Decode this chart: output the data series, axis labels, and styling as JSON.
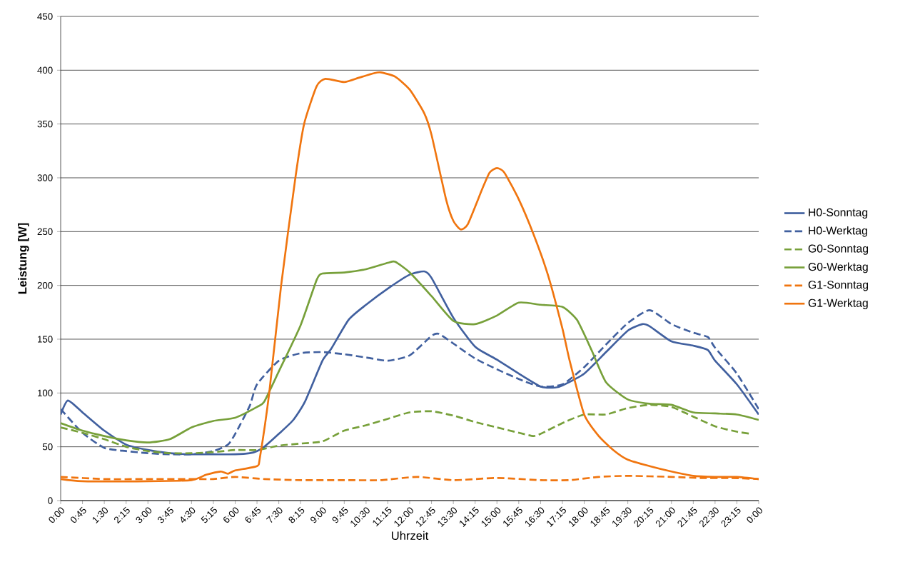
{
  "chart_data": {
    "type": "line",
    "xlabel": "Uhrzeit",
    "ylabel": "Leistung [W]",
    "xlim": [
      0,
      24
    ],
    "ylim": [
      0,
      450
    ],
    "xticks": [
      {
        "value": 0,
        "label": "0:00"
      },
      {
        "value": 0.75,
        "label": "0:45"
      },
      {
        "value": 1.5,
        "label": "1:30"
      },
      {
        "value": 2.25,
        "label": "2:15"
      },
      {
        "value": 3,
        "label": "3:00"
      },
      {
        "value": 3.75,
        "label": "3:45"
      },
      {
        "value": 4.5,
        "label": "4:30"
      },
      {
        "value": 5.25,
        "label": "5:15"
      },
      {
        "value": 6,
        "label": "6:00"
      },
      {
        "value": 6.75,
        "label": "6:45"
      },
      {
        "value": 7.5,
        "label": "7:30"
      },
      {
        "value": 8.25,
        "label": "8:15"
      },
      {
        "value": 9,
        "label": "9:00"
      },
      {
        "value": 9.75,
        "label": "9:45"
      },
      {
        "value": 10.5,
        "label": "10:30"
      },
      {
        "value": 11.25,
        "label": "11:15"
      },
      {
        "value": 12,
        "label": "12:00"
      },
      {
        "value": 12.75,
        "label": "12:45"
      },
      {
        "value": 13.5,
        "label": "13:30"
      },
      {
        "value": 14.25,
        "label": "14:15"
      },
      {
        "value": 15,
        "label": "15:00"
      },
      {
        "value": 15.75,
        "label": "15:45"
      },
      {
        "value": 16.5,
        "label": "16:30"
      },
      {
        "value": 17.25,
        "label": "17:15"
      },
      {
        "value": 18,
        "label": "18:00"
      },
      {
        "value": 18.75,
        "label": "18:45"
      },
      {
        "value": 19.5,
        "label": "19:30"
      },
      {
        "value": 20.25,
        "label": "20:15"
      },
      {
        "value": 21,
        "label": "21:00"
      },
      {
        "value": 21.75,
        "label": "21:45"
      },
      {
        "value": 22.5,
        "label": "22:30"
      },
      {
        "value": 23.25,
        "label": "23:15"
      },
      {
        "value": 24,
        "label": "0:00"
      }
    ],
    "yticks": [
      0,
      50,
      100,
      150,
      200,
      250,
      300,
      350,
      400,
      450
    ],
    "grid": "y",
    "legend": "right",
    "marker": "none",
    "series": [
      {
        "name": "H0-Sonntag",
        "color": "#41609f",
        "line_style": "solid",
        "x": [
          0,
          0.25,
          0.75,
          1.5,
          2.25,
          3,
          3.75,
          4.5,
          5.25,
          6,
          6.5,
          6.75,
          7,
          7.5,
          8,
          8.4,
          9,
          9.3,
          9.9,
          10.5,
          11.3,
          12,
          12.5,
          12.75,
          13.5,
          14.25,
          15,
          15.75,
          16.5,
          17,
          17.25,
          18,
          18.75,
          19.5,
          20,
          20.25,
          21,
          21.75,
          22.25,
          22.5,
          23.25,
          24
        ],
        "values": [
          80,
          93,
          82,
          65,
          52,
          47,
          44,
          43,
          43,
          43,
          44,
          46,
          50,
          62,
          75,
          92,
          130,
          141,
          168,
          182,
          198,
          210,
          213,
          207,
          170,
          143,
          131,
          118,
          106,
          105,
          107,
          118,
          138,
          158,
          164,
          162,
          148,
          144,
          140,
          130,
          108,
          80
        ]
      },
      {
        "name": "H0-Werktag",
        "color": "#41609f",
        "line_style": "dashed",
        "x": [
          0,
          0.75,
          1.5,
          2.25,
          3,
          3.75,
          4.5,
          5.25,
          5.75,
          6,
          6.5,
          6.75,
          7.5,
          8.25,
          9,
          9.75,
          10.5,
          11.25,
          12,
          12.75,
          13,
          13.5,
          14.25,
          15,
          15.75,
          16.5,
          17.25,
          18,
          18.75,
          19.5,
          20.25,
          21,
          21.75,
          22.25,
          22.5,
          23.25,
          24
        ],
        "values": [
          85,
          63,
          49,
          46,
          44,
          43,
          43,
          46,
          52,
          62,
          88,
          108,
          130,
          137,
          138,
          136,
          133,
          130,
          135,
          153,
          155,
          146,
          132,
          122,
          113,
          106,
          108,
          124,
          145,
          165,
          177,
          164,
          156,
          152,
          142,
          118,
          85
        ]
      },
      {
        "name": "G0-Sonntag",
        "color": "#77a03a",
        "line_style": "dashed",
        "x": [
          0,
          0.75,
          1.5,
          2.25,
          3,
          3.75,
          4.5,
          5.25,
          6,
          6.75,
          7.5,
          8.25,
          9,
          9.75,
          10.5,
          11.25,
          12,
          12.75,
          13.5,
          14.25,
          15,
          15.75,
          16.25,
          16.5,
          17.25,
          18,
          18.75,
          19.5,
          20.25,
          21,
          21.75,
          22.5,
          23.25,
          23.75
        ],
        "values": [
          68,
          63,
          57,
          50,
          46,
          44,
          44,
          45,
          47,
          47,
          51,
          53,
          55,
          65,
          70,
          76,
          82,
          83,
          79,
          73,
          68,
          63,
          60,
          62,
          72,
          80,
          80,
          86,
          89,
          87,
          78,
          69,
          64,
          62
        ]
      },
      {
        "name": "G0-Werktag",
        "color": "#77a03a",
        "line_style": "solid",
        "x": [
          0,
          0.75,
          1.5,
          2.25,
          3,
          3.75,
          4.5,
          5.25,
          6,
          6.75,
          7,
          7.5,
          8.25,
          8.8,
          9,
          9.75,
          10.5,
          11.25,
          11.5,
          12,
          12.75,
          13.5,
          14.25,
          15,
          15.75,
          16.5,
          17.25,
          17.75,
          18.25,
          18.75,
          19.5,
          20.25,
          21,
          21.75,
          22.5,
          23.25,
          24
        ],
        "values": [
          72,
          65,
          60,
          56,
          54,
          57,
          68,
          74,
          77,
          87,
          92,
          120,
          163,
          205,
          211,
          212,
          215,
          221,
          222,
          212,
          190,
          167,
          164,
          172,
          184,
          182,
          180,
          168,
          140,
          110,
          94,
          90,
          89,
          82,
          81,
          80,
          75
        ]
      },
      {
        "name": "G1-Sonntag",
        "color": "#f0750f",
        "line_style": "dashed",
        "x": [
          0,
          1.5,
          3,
          4.5,
          5.25,
          6,
          7,
          8.25,
          9.75,
          11,
          12.25,
          13.5,
          15,
          16.5,
          17.5,
          18.5,
          19.5,
          21,
          22,
          23,
          24
        ],
        "values": [
          22,
          20,
          20,
          20,
          20,
          22,
          20,
          19,
          19,
          19,
          22,
          19,
          21,
          19,
          19,
          22,
          23,
          22,
          21,
          21,
          20
        ]
      },
      {
        "name": "G1-Werktag",
        "color": "#f0750f",
        "line_style": "solid",
        "x": [
          0,
          0.75,
          3,
          4.5,
          5,
          5.5,
          5.75,
          6,
          6.75,
          6.85,
          7.17,
          7.58,
          8.07,
          8.37,
          8.8,
          9.1,
          9.75,
          10.25,
          10.75,
          11,
          11.5,
          12,
          12.5,
          12.75,
          13.25,
          13.5,
          13.75,
          14,
          14.5,
          14.75,
          15,
          15.25,
          15.75,
          16.25,
          16.75,
          17.25,
          17.5,
          18,
          18.5,
          19,
          19.5,
          20.25,
          21,
          21.75,
          22.5,
          23.25,
          24
        ],
        "values": [
          20,
          18,
          18,
          19,
          24,
          27,
          25,
          28,
          32,
          40,
          100,
          200,
          300,
          350,
          385,
          392,
          389,
          393,
          397,
          398,
          394,
          382,
          360,
          340,
          280,
          260,
          252,
          257,
          290,
          305,
          309,
          305,
          280,
          248,
          210,
          160,
          130,
          80,
          60,
          47,
          38,
          32,
          27,
          23,
          22,
          22,
          20
        ]
      }
    ]
  }
}
